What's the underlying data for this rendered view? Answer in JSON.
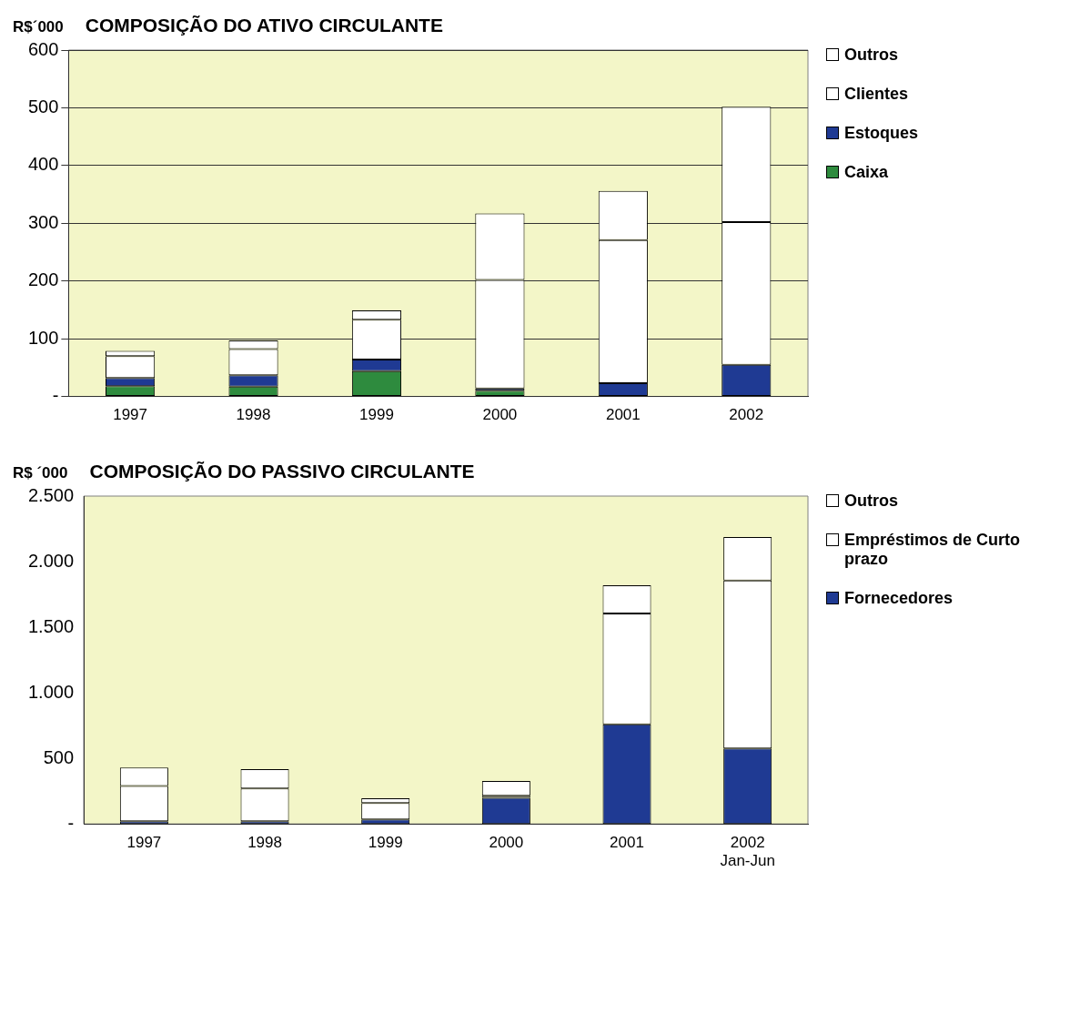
{
  "chart_data": [
    {
      "type": "bar",
      "title": "COMPOSIÇÃO DO ATIVO CIRCULANTE",
      "ylabel": "R$´000",
      "stacked": true,
      "categories": [
        "1997",
        "1998",
        "1999",
        "2000",
        "2001",
        "2002"
      ],
      "series": [
        {
          "name": "Caixa",
          "color": "#2e8b3e",
          "values": [
            18,
            17,
            44,
            10,
            0,
            0
          ]
        },
        {
          "name": "Estoques",
          "color": "#1f3a93",
          "values": [
            14,
            20,
            20,
            4,
            23,
            55
          ]
        },
        {
          "name": "Clientes",
          "color": "#ffffff",
          "values": [
            38,
            45,
            69,
            188,
            248,
            247
          ]
        },
        {
          "name": "Outros",
          "color": "#ffffff",
          "values": [
            9,
            15,
            16,
            115,
            85,
            200
          ]
        }
      ],
      "ylim": [
        0,
        600
      ],
      "yticks": [
        {
          "value": 0,
          "label": "-"
        },
        100,
        200,
        300,
        400,
        500,
        600
      ],
      "grid": "y",
      "legend": "right"
    },
    {
      "type": "bar",
      "title": "COMPOSIÇÃO DO PASSIVO CIRCULANTE",
      "ylabel": "R$ ´000",
      "stacked": true,
      "categories": [
        "1997",
        "1998",
        "1999",
        "2000",
        "2001",
        "2002\nJan-Jun"
      ],
      "series": [
        {
          "name": "Fornecedores",
          "color": "#1f3a93",
          "values": [
            20,
            20,
            34,
            200,
            760,
            575
          ]
        },
        {
          "name": "Empréstimos de Curto prazo",
          "color": "#ffffff",
          "values": [
            270,
            250,
            126,
            15,
            845,
            1282
          ]
        },
        {
          "name": "Outros",
          "color": "#ffffff",
          "values": [
            140,
            147,
            35,
            112,
            215,
            331
          ]
        }
      ],
      "ylim": [
        0,
        2500
      ],
      "yticks": [
        {
          "value": 0,
          "label": "-"
        },
        {
          "value": 500,
          "label": "500"
        },
        {
          "value": 1000,
          "label": "1.000"
        },
        {
          "value": 1500,
          "label": "1.500"
        },
        {
          "value": 2000,
          "label": "2.000"
        },
        {
          "value": 2500,
          "label": "2.500"
        }
      ],
      "grid": false,
      "legend": "right"
    }
  ]
}
